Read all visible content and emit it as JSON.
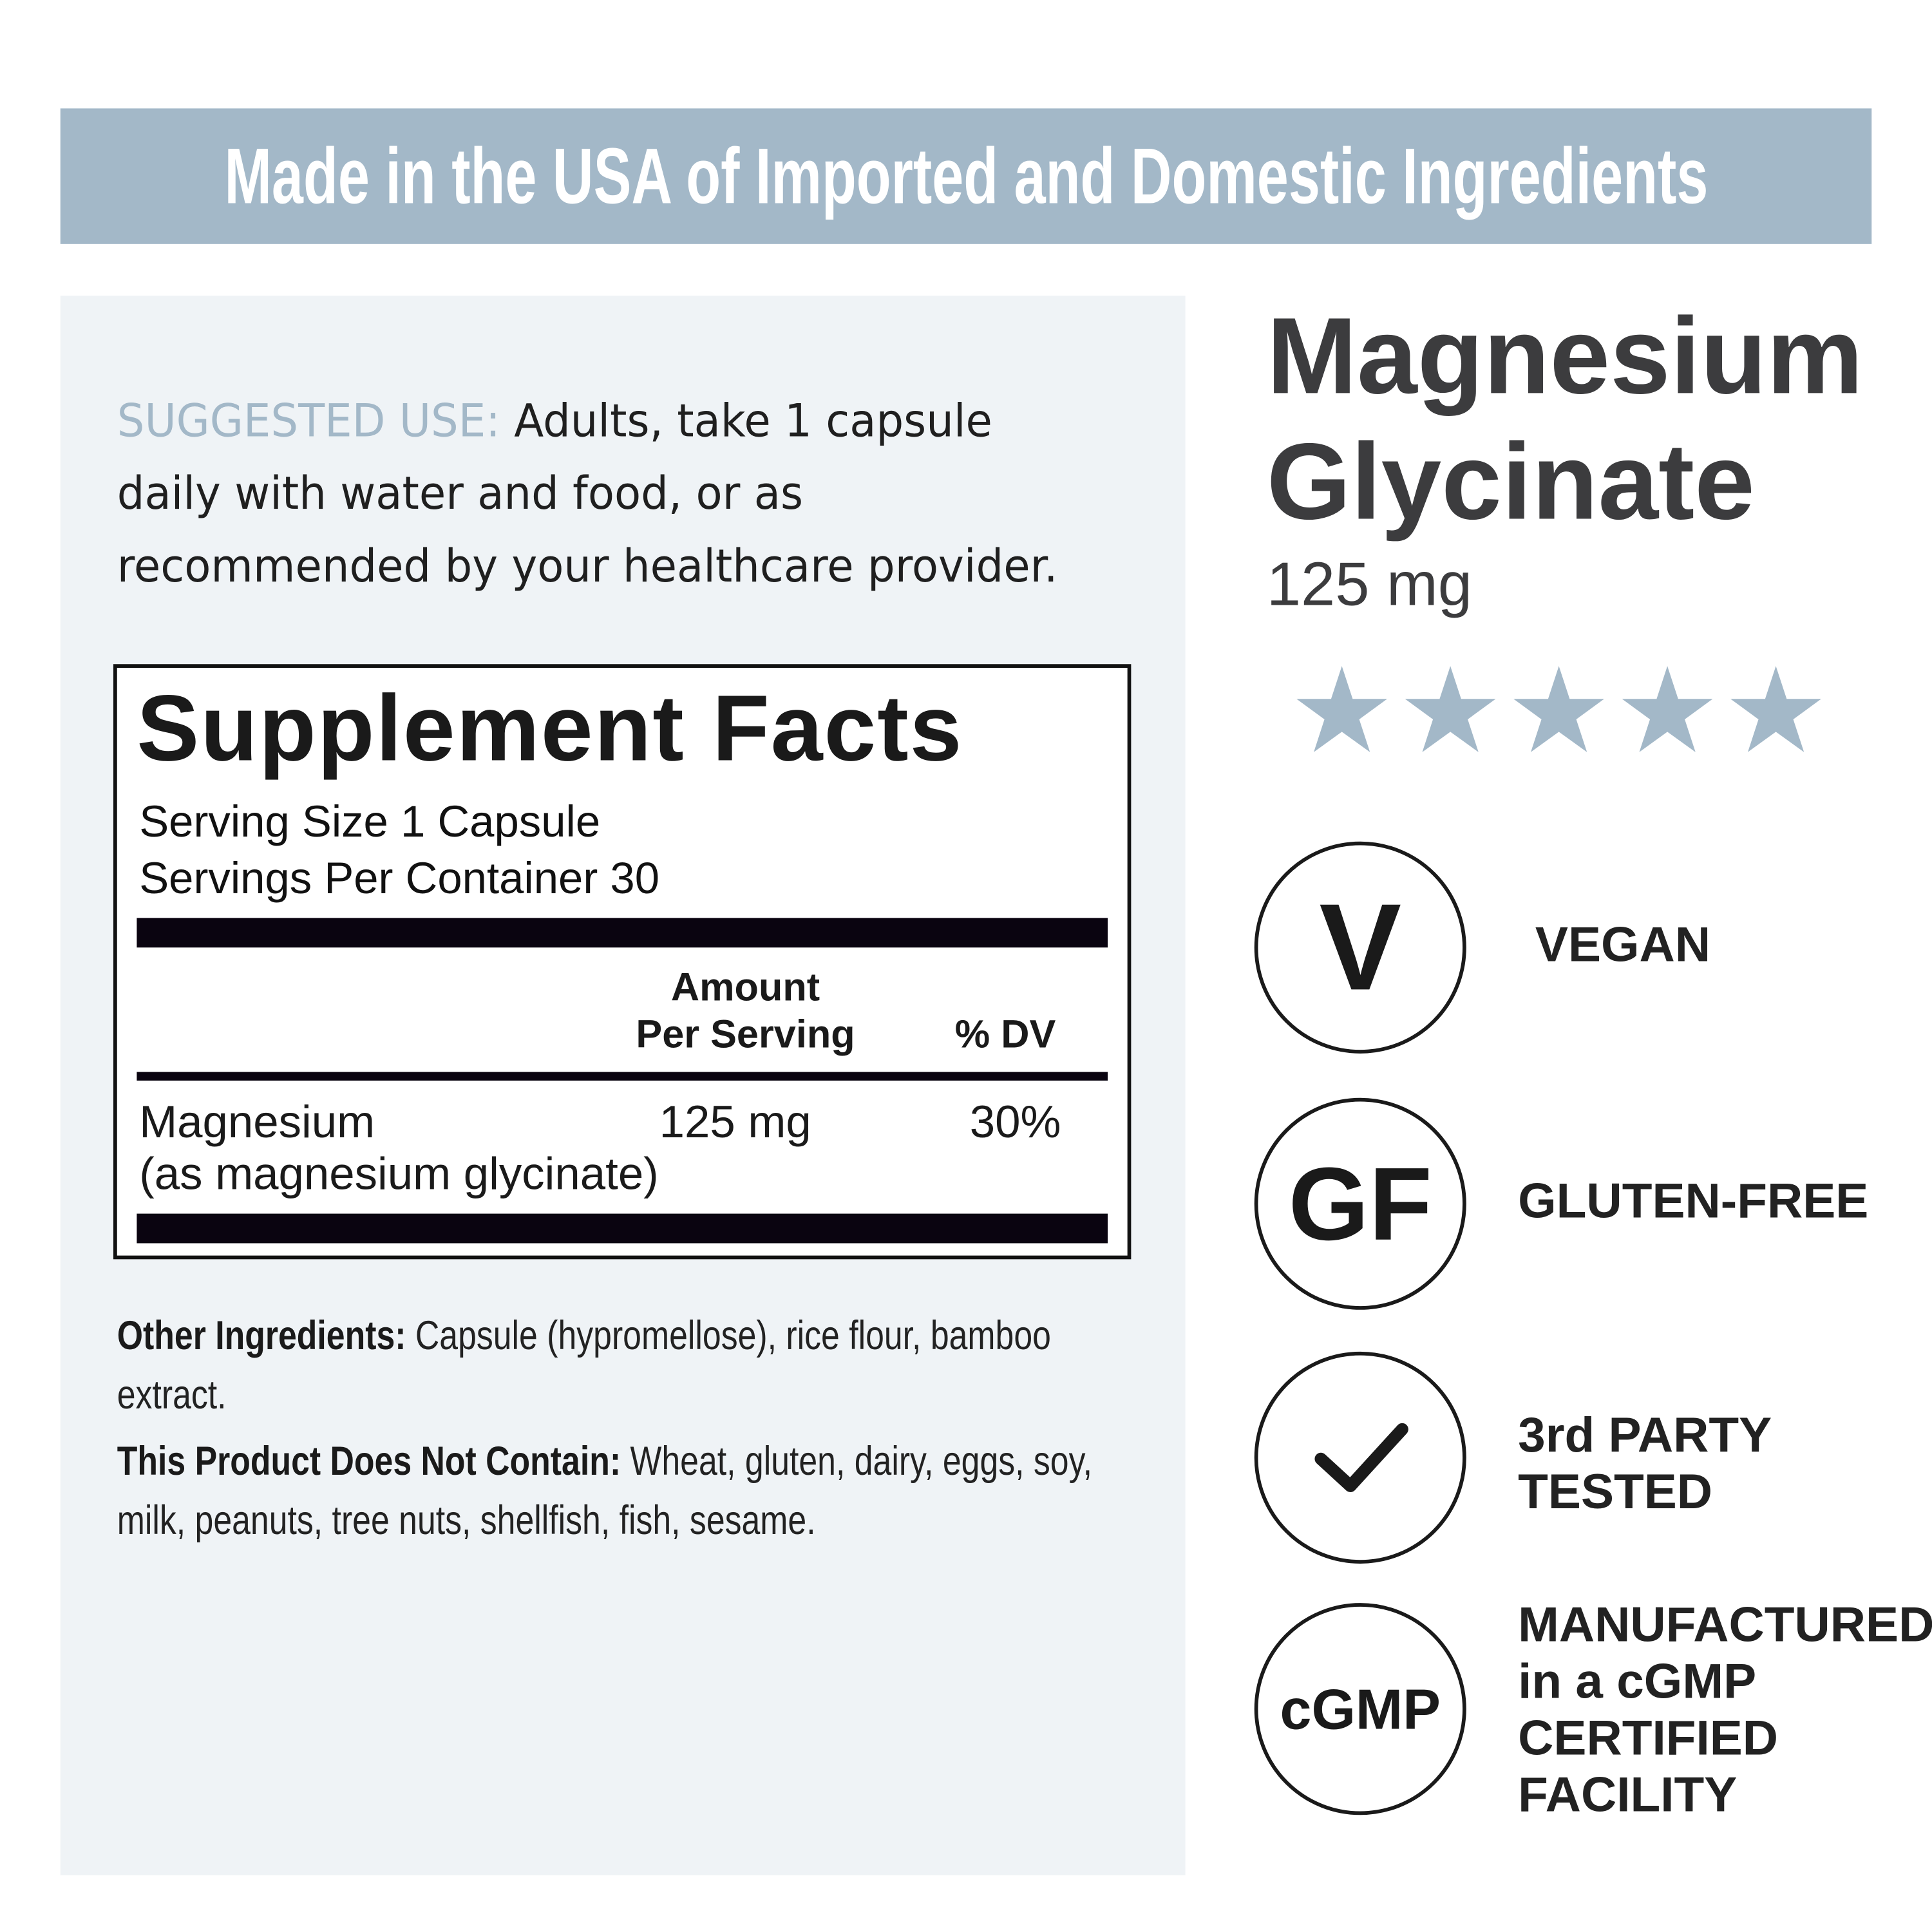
{
  "banner": {
    "text": "Made in the USA of Imported and Domestic Ingredients",
    "color": "#a3b8c8"
  },
  "suggested_use": {
    "label": "SUGGESTED USE:",
    "text": " Adults, take 1 capsule daily with water and food, or as recommended by your healthcare provider."
  },
  "facts": {
    "title": "Supplement Facts",
    "serving_size": "Serving Size 1 Capsule",
    "servings_per_container": "Servings Per Container 30",
    "col_amount_1": "Amount",
    "col_amount_2": "Per Serving",
    "col_dv": "% DV",
    "rows": [
      {
        "name": "Magnesium",
        "sub": "(as magnesium glycinate)",
        "amount": "125 mg",
        "dv": "30%"
      }
    ]
  },
  "other": {
    "ingredients_label": "Other Ingredients:",
    "ingredients": " Capsule (hypromellose), rice flour, bamboo extract.",
    "not_contain_label": "This Product Does Not Contain:",
    "not_contain": " Wheat, gluten, dairy, eggs, soy, milk, peanuts, tree nuts, shellfish, fish, sesame."
  },
  "product": {
    "name_1": "Magnesium",
    "name_2": "Glycinate",
    "dose": "125 mg"
  },
  "rating": {
    "stars": 5,
    "max": 5,
    "color": "#a3b8c8"
  },
  "badges": [
    {
      "icon": "V",
      "icon_name": "vegan-icon",
      "label": "VEGAN"
    },
    {
      "icon": "GF",
      "icon_name": "gluten-free-icon",
      "label": "GLUTEN-FREE"
    },
    {
      "icon": "✓",
      "icon_name": "checkmark-icon",
      "label": "3rd PARTY TESTED"
    },
    {
      "icon": "cGMP",
      "icon_name": "cgmp-icon",
      "label": "MANUFACTURED in a cGMP CERTIFIED FACILITY"
    }
  ]
}
